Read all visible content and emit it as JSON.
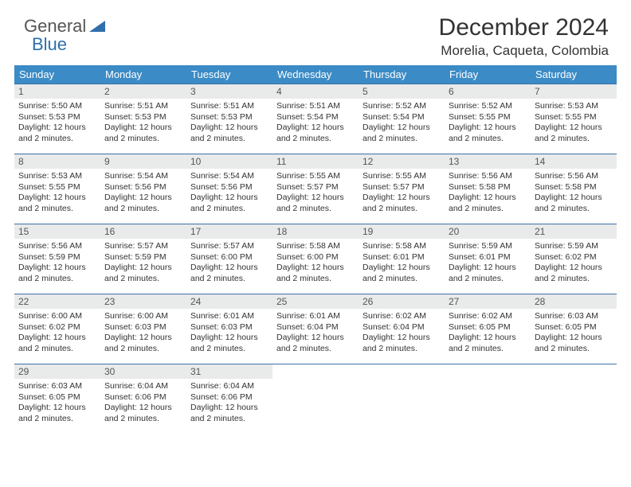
{
  "branding": {
    "name_line1": "General",
    "name_line2": "Blue",
    "color_text": "#555555",
    "color_blue": "#2f6fab"
  },
  "header": {
    "month_title": "December 2024",
    "location": "Morelia, Caqueta, Colombia",
    "title_fontsize": 30,
    "location_fontsize": 17
  },
  "style": {
    "header_row_bg": "#3b8bc6",
    "header_row_fg": "#ffffff",
    "daynum_bg": "#e9eaea",
    "border_color": "#3b71a8",
    "page_bg": "#ffffff",
    "body_fontsize": 10.5,
    "daynum_fontsize": 12,
    "dayheader_fontsize": 13
  },
  "calendar": {
    "day_headers": [
      "Sunday",
      "Monday",
      "Tuesday",
      "Wednesday",
      "Thursday",
      "Friday",
      "Saturday"
    ],
    "weeks": [
      [
        {
          "num": "1",
          "sunrise": "5:50 AM",
          "sunset": "5:53 PM",
          "daylight": "12 hours and 2 minutes."
        },
        {
          "num": "2",
          "sunrise": "5:51 AM",
          "sunset": "5:53 PM",
          "daylight": "12 hours and 2 minutes."
        },
        {
          "num": "3",
          "sunrise": "5:51 AM",
          "sunset": "5:53 PM",
          "daylight": "12 hours and 2 minutes."
        },
        {
          "num": "4",
          "sunrise": "5:51 AM",
          "sunset": "5:54 PM",
          "daylight": "12 hours and 2 minutes."
        },
        {
          "num": "5",
          "sunrise": "5:52 AM",
          "sunset": "5:54 PM",
          "daylight": "12 hours and 2 minutes."
        },
        {
          "num": "6",
          "sunrise": "5:52 AM",
          "sunset": "5:55 PM",
          "daylight": "12 hours and 2 minutes."
        },
        {
          "num": "7",
          "sunrise": "5:53 AM",
          "sunset": "5:55 PM",
          "daylight": "12 hours and 2 minutes."
        }
      ],
      [
        {
          "num": "8",
          "sunrise": "5:53 AM",
          "sunset": "5:55 PM",
          "daylight": "12 hours and 2 minutes."
        },
        {
          "num": "9",
          "sunrise": "5:54 AM",
          "sunset": "5:56 PM",
          "daylight": "12 hours and 2 minutes."
        },
        {
          "num": "10",
          "sunrise": "5:54 AM",
          "sunset": "5:56 PM",
          "daylight": "12 hours and 2 minutes."
        },
        {
          "num": "11",
          "sunrise": "5:55 AM",
          "sunset": "5:57 PM",
          "daylight": "12 hours and 2 minutes."
        },
        {
          "num": "12",
          "sunrise": "5:55 AM",
          "sunset": "5:57 PM",
          "daylight": "12 hours and 2 minutes."
        },
        {
          "num": "13",
          "sunrise": "5:56 AM",
          "sunset": "5:58 PM",
          "daylight": "12 hours and 2 minutes."
        },
        {
          "num": "14",
          "sunrise": "5:56 AM",
          "sunset": "5:58 PM",
          "daylight": "12 hours and 2 minutes."
        }
      ],
      [
        {
          "num": "15",
          "sunrise": "5:56 AM",
          "sunset": "5:59 PM",
          "daylight": "12 hours and 2 minutes."
        },
        {
          "num": "16",
          "sunrise": "5:57 AM",
          "sunset": "5:59 PM",
          "daylight": "12 hours and 2 minutes."
        },
        {
          "num": "17",
          "sunrise": "5:57 AM",
          "sunset": "6:00 PM",
          "daylight": "12 hours and 2 minutes."
        },
        {
          "num": "18",
          "sunrise": "5:58 AM",
          "sunset": "6:00 PM",
          "daylight": "12 hours and 2 minutes."
        },
        {
          "num": "19",
          "sunrise": "5:58 AM",
          "sunset": "6:01 PM",
          "daylight": "12 hours and 2 minutes."
        },
        {
          "num": "20",
          "sunrise": "5:59 AM",
          "sunset": "6:01 PM",
          "daylight": "12 hours and 2 minutes."
        },
        {
          "num": "21",
          "sunrise": "5:59 AM",
          "sunset": "6:02 PM",
          "daylight": "12 hours and 2 minutes."
        }
      ],
      [
        {
          "num": "22",
          "sunrise": "6:00 AM",
          "sunset": "6:02 PM",
          "daylight": "12 hours and 2 minutes."
        },
        {
          "num": "23",
          "sunrise": "6:00 AM",
          "sunset": "6:03 PM",
          "daylight": "12 hours and 2 minutes."
        },
        {
          "num": "24",
          "sunrise": "6:01 AM",
          "sunset": "6:03 PM",
          "daylight": "12 hours and 2 minutes."
        },
        {
          "num": "25",
          "sunrise": "6:01 AM",
          "sunset": "6:04 PM",
          "daylight": "12 hours and 2 minutes."
        },
        {
          "num": "26",
          "sunrise": "6:02 AM",
          "sunset": "6:04 PM",
          "daylight": "12 hours and 2 minutes."
        },
        {
          "num": "27",
          "sunrise": "6:02 AM",
          "sunset": "6:05 PM",
          "daylight": "12 hours and 2 minutes."
        },
        {
          "num": "28",
          "sunrise": "6:03 AM",
          "sunset": "6:05 PM",
          "daylight": "12 hours and 2 minutes."
        }
      ],
      [
        {
          "num": "29",
          "sunrise": "6:03 AM",
          "sunset": "6:05 PM",
          "daylight": "12 hours and 2 minutes."
        },
        {
          "num": "30",
          "sunrise": "6:04 AM",
          "sunset": "6:06 PM",
          "daylight": "12 hours and 2 minutes."
        },
        {
          "num": "31",
          "sunrise": "6:04 AM",
          "sunset": "6:06 PM",
          "daylight": "12 hours and 2 minutes."
        },
        null,
        null,
        null,
        null
      ]
    ],
    "labels": {
      "sunrise_prefix": "Sunrise: ",
      "sunset_prefix": "Sunset: ",
      "daylight_prefix": "Daylight: "
    }
  }
}
